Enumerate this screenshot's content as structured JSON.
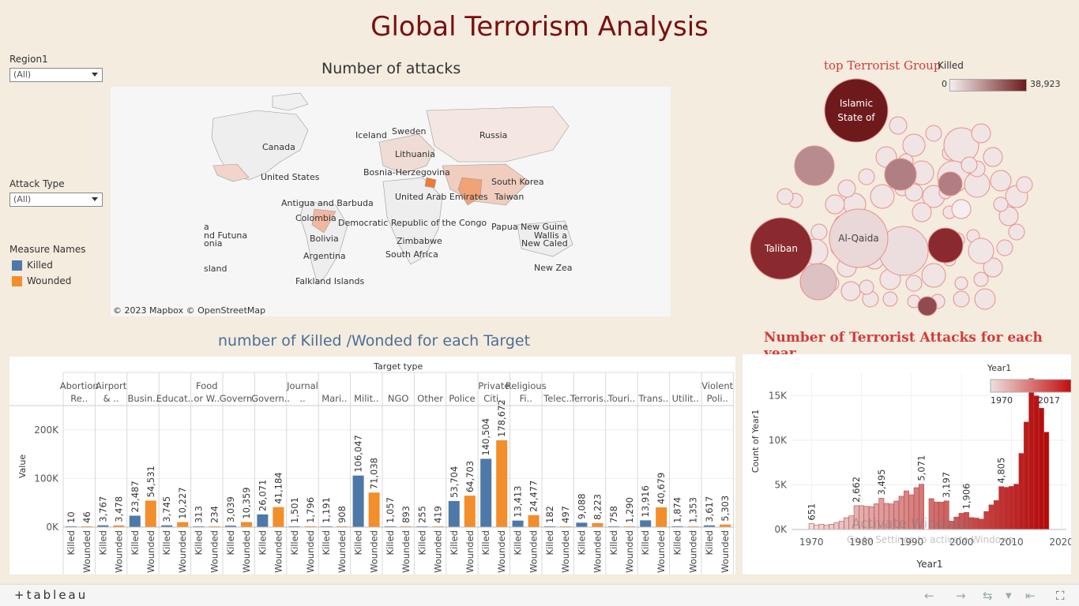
{
  "page": {
    "title": "Global Terrorism Analysis"
  },
  "filters": {
    "region_label": "Region1",
    "region_value": "(All)",
    "attack_label": "Attack Type",
    "attack_value": "(All)",
    "measure_label": "Measure Names",
    "measures": [
      {
        "name": "Killed",
        "color": "#4e79a7"
      },
      {
        "name": "Wounded",
        "color": "#f28e2b"
      }
    ]
  },
  "map": {
    "title": "Number of attacks",
    "labels": [
      "Canada",
      "Iceland",
      "Sweden",
      "Russia",
      "Lithuania",
      "Bosnia-Herzegovina",
      "United States",
      "South Korea",
      "United Arab Emirates",
      "Taiwan",
      "Antigua and Barbuda",
      "Colombia",
      "Democratic Republic of the Congo",
      "Papua New Guine",
      "Wallis a",
      "Bolivia",
      "Zimbabwe",
      "New Caled",
      "Argentina",
      "South Africa",
      "New Zea",
      "Falkland Islands",
      "a",
      "nd Futuna",
      "onia",
      "sland"
    ],
    "attribution": "© 2023 Mapbox  © OpenStreetMap"
  },
  "bubble": {
    "title": "top Terrorist Group",
    "legend_title": "Killed",
    "legend_min": "0",
    "legend_max": "38,923",
    "groups": [
      {
        "name": "Islamic State of",
        "label_lines": [
          "Islamic",
          "State of"
        ],
        "color": "#6e1a1d"
      },
      {
        "name": "Taliban",
        "label_lines": [
          "Taliban"
        ],
        "color": "#8b2a2e"
      },
      {
        "name": "Al-Qaida",
        "label_lines": [
          "Al-Qaida"
        ],
        "color": "#ead7d7"
      }
    ]
  },
  "watermark": {
    "line1": "Activate Windows",
    "line2": "Go to Settings to activate Windows."
  },
  "footer": {
    "logo": "+tableau"
  },
  "chart_data": [
    {
      "type": "bar",
      "title": "number of Killed /Wonded for each Target",
      "header": "Target type",
      "ylabel": "Value",
      "ylim": [
        0,
        250000
      ],
      "y_ticks": [
        "0K",
        "100K",
        "200K"
      ],
      "categories": [
        "Abortion Re..",
        "Airport & ..",
        "Busin..",
        "Educat..",
        "Food or W..",
        "Govern..",
        "Govern..",
        "Journal ..",
        "Mari..",
        "Milit..",
        "NGO",
        "Other",
        "Police",
        "Private Citi..",
        "Religious Fi..",
        "Telec..",
        "Terroris..",
        "Touri..",
        "Trans..",
        "Utilit..",
        "Violent Poli.."
      ],
      "category_labels": [
        [
          "Abortion",
          "Re.."
        ],
        [
          "Airport",
          "& .."
        ],
        [
          "Busin.."
        ],
        [
          "Educat.."
        ],
        [
          "Food",
          "or W.."
        ],
        [
          "Govern.."
        ],
        [
          "Govern.."
        ],
        [
          "Journal",
          ".."
        ],
        [
          "Mari.."
        ],
        [
          "Milit.."
        ],
        [
          "NGO"
        ],
        [
          "Other"
        ],
        [
          "Police"
        ],
        [
          "Private",
          "Citi.."
        ],
        [
          "Religious",
          "Fi.."
        ],
        [
          "Telec.."
        ],
        [
          "Terroris.."
        ],
        [
          "Touri.."
        ],
        [
          "Trans.."
        ],
        [
          "Utilit.."
        ],
        [
          "Violent",
          "Poli.."
        ]
      ],
      "series": [
        {
          "name": "Killed",
          "values": [
            10,
            3767,
            23487,
            3745,
            313,
            3039,
            26071,
            1501,
            1191,
            106047,
            1057,
            255,
            53704,
            140504,
            13413,
            182,
            9088,
            758,
            13916,
            1874,
            3617
          ]
        },
        {
          "name": "Wounded",
          "values": [
            46,
            3478,
            54531,
            10227,
            234,
            10359,
            41184,
            1796,
            908,
            71038,
            893,
            419,
            64703,
            178672,
            24477,
            497,
            8223,
            1290,
            40679,
            1353,
            5303
          ]
        }
      ],
      "value_labels": {
        "Killed": [
          "10",
          "3,767",
          "23,487",
          "3,745",
          "313",
          "3,039",
          "26,071",
          "1,501",
          "1,191",
          "106,047",
          "1,057",
          "255",
          "53,704",
          "140,504",
          "13,413",
          "182",
          "9,088",
          "758",
          "13,916",
          "1,874",
          "3,617"
        ],
        "Wounded": [
          "46",
          "3,478",
          "54,531",
          "10,227",
          "234",
          "10,359",
          "41,184",
          "1,796",
          "908",
          "71,038",
          "893",
          "419",
          "64,703",
          "178,672",
          "24,477",
          "497",
          "8,223",
          "1,290",
          "40,679",
          "1,353",
          "5,303"
        ]
      }
    },
    {
      "type": "bar",
      "title": "Number of Terrorist Attacks for each year",
      "xlabel": "Year1",
      "ylabel": "Count of Year1",
      "ylim": [
        0,
        17500
      ],
      "xlim": [
        1966,
        2021
      ],
      "x_ticks": [
        1970,
        1980,
        1990,
        2000,
        2010,
        2020
      ],
      "y_ticks": [
        "0K",
        "5K",
        "10K",
        "15K"
      ],
      "legend_title": "Year1",
      "legend_min": "1970",
      "legend_max": "2017",
      "x": [
        1970,
        1971,
        1972,
        1973,
        1974,
        1975,
        1976,
        1977,
        1978,
        1979,
        1980,
        1981,
        1982,
        1983,
        1984,
        1985,
        1986,
        1987,
        1988,
        1989,
        1990,
        1991,
        1992,
        1994,
        1995,
        1996,
        1997,
        1998,
        1999,
        2000,
        2001,
        2002,
        2003,
        2004,
        2005,
        2006,
        2007,
        2008,
        2009,
        2010,
        2011,
        2012,
        2013,
        2014,
        2015,
        2016,
        2017
      ],
      "values": [
        651,
        471,
        568,
        473,
        581,
        740,
        923,
        1319,
        1526,
        2662,
        2662,
        2586,
        2544,
        2870,
        3495,
        2915,
        2860,
        3183,
        3721,
        4324,
        3887,
        4683,
        5071,
        3456,
        3081,
        3058,
        3197,
        934,
        1395,
        1814,
        1906,
        1333,
        1278,
        1166,
        2017,
        2758,
        3242,
        4805,
        4721,
        4826,
        5076,
        8522,
        12036,
        16903,
        14965,
        13587,
        10900
      ],
      "value_labels": [
        {
          "x": 1970,
          "label": "651"
        },
        {
          "x": 1979,
          "label": "2,662"
        },
        {
          "x": 1984,
          "label": "3,495"
        },
        {
          "x": 1992,
          "label": "5,071"
        },
        {
          "x": 1997,
          "label": "3,197"
        },
        {
          "x": 2001,
          "label": "1,906"
        },
        {
          "x": 2008,
          "label": "4,805"
        }
      ]
    }
  ]
}
